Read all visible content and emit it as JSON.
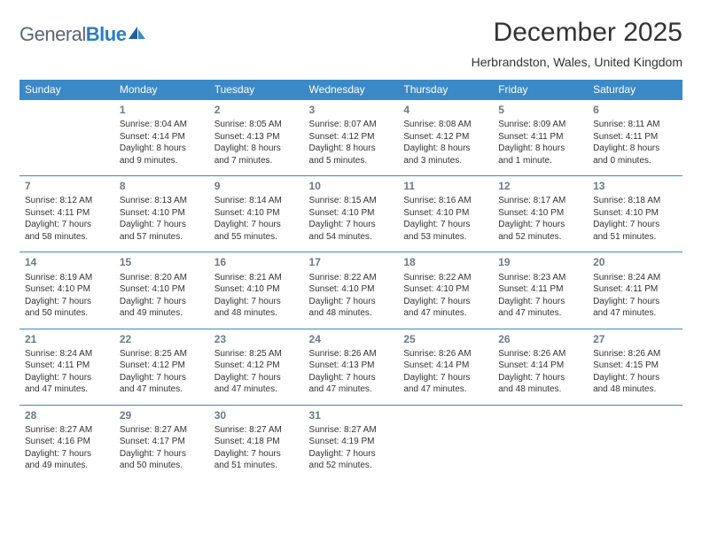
{
  "brand": {
    "part1": "General",
    "part2": "Blue"
  },
  "title": "December 2025",
  "location": "Herbrandston, Wales, United Kingdom",
  "colors": {
    "header_bg": "#3b89c7",
    "header_fg": "#ffffff",
    "border": "#3b89c7",
    "daynum": "#6b7a88",
    "text": "#333333",
    "brand_gray": "#5c6670",
    "brand_blue": "#2d7cc0",
    "page_bg": "#ffffff"
  },
  "typography": {
    "title_fontsize": 30,
    "location_fontsize": 14,
    "th_fontsize": 12,
    "daynum_fontsize": 12,
    "cell_fontsize": 10
  },
  "day_headers": [
    "Sunday",
    "Monday",
    "Tuesday",
    "Wednesday",
    "Thursday",
    "Friday",
    "Saturday"
  ],
  "weeks": [
    [
      null,
      {
        "n": "1",
        "sr": "Sunrise: 8:04 AM",
        "ss": "Sunset: 4:14 PM",
        "d1": "Daylight: 8 hours",
        "d2": "and 9 minutes."
      },
      {
        "n": "2",
        "sr": "Sunrise: 8:05 AM",
        "ss": "Sunset: 4:13 PM",
        "d1": "Daylight: 8 hours",
        "d2": "and 7 minutes."
      },
      {
        "n": "3",
        "sr": "Sunrise: 8:07 AM",
        "ss": "Sunset: 4:12 PM",
        "d1": "Daylight: 8 hours",
        "d2": "and 5 minutes."
      },
      {
        "n": "4",
        "sr": "Sunrise: 8:08 AM",
        "ss": "Sunset: 4:12 PM",
        "d1": "Daylight: 8 hours",
        "d2": "and 3 minutes."
      },
      {
        "n": "5",
        "sr": "Sunrise: 8:09 AM",
        "ss": "Sunset: 4:11 PM",
        "d1": "Daylight: 8 hours",
        "d2": "and 1 minute."
      },
      {
        "n": "6",
        "sr": "Sunrise: 8:11 AM",
        "ss": "Sunset: 4:11 PM",
        "d1": "Daylight: 8 hours",
        "d2": "and 0 minutes."
      }
    ],
    [
      {
        "n": "7",
        "sr": "Sunrise: 8:12 AM",
        "ss": "Sunset: 4:11 PM",
        "d1": "Daylight: 7 hours",
        "d2": "and 58 minutes."
      },
      {
        "n": "8",
        "sr": "Sunrise: 8:13 AM",
        "ss": "Sunset: 4:10 PM",
        "d1": "Daylight: 7 hours",
        "d2": "and 57 minutes."
      },
      {
        "n": "9",
        "sr": "Sunrise: 8:14 AM",
        "ss": "Sunset: 4:10 PM",
        "d1": "Daylight: 7 hours",
        "d2": "and 55 minutes."
      },
      {
        "n": "10",
        "sr": "Sunrise: 8:15 AM",
        "ss": "Sunset: 4:10 PM",
        "d1": "Daylight: 7 hours",
        "d2": "and 54 minutes."
      },
      {
        "n": "11",
        "sr": "Sunrise: 8:16 AM",
        "ss": "Sunset: 4:10 PM",
        "d1": "Daylight: 7 hours",
        "d2": "and 53 minutes."
      },
      {
        "n": "12",
        "sr": "Sunrise: 8:17 AM",
        "ss": "Sunset: 4:10 PM",
        "d1": "Daylight: 7 hours",
        "d2": "and 52 minutes."
      },
      {
        "n": "13",
        "sr": "Sunrise: 8:18 AM",
        "ss": "Sunset: 4:10 PM",
        "d1": "Daylight: 7 hours",
        "d2": "and 51 minutes."
      }
    ],
    [
      {
        "n": "14",
        "sr": "Sunrise: 8:19 AM",
        "ss": "Sunset: 4:10 PM",
        "d1": "Daylight: 7 hours",
        "d2": "and 50 minutes."
      },
      {
        "n": "15",
        "sr": "Sunrise: 8:20 AM",
        "ss": "Sunset: 4:10 PM",
        "d1": "Daylight: 7 hours",
        "d2": "and 49 minutes."
      },
      {
        "n": "16",
        "sr": "Sunrise: 8:21 AM",
        "ss": "Sunset: 4:10 PM",
        "d1": "Daylight: 7 hours",
        "d2": "and 48 minutes."
      },
      {
        "n": "17",
        "sr": "Sunrise: 8:22 AM",
        "ss": "Sunset: 4:10 PM",
        "d1": "Daylight: 7 hours",
        "d2": "and 48 minutes."
      },
      {
        "n": "18",
        "sr": "Sunrise: 8:22 AM",
        "ss": "Sunset: 4:10 PM",
        "d1": "Daylight: 7 hours",
        "d2": "and 47 minutes."
      },
      {
        "n": "19",
        "sr": "Sunrise: 8:23 AM",
        "ss": "Sunset: 4:11 PM",
        "d1": "Daylight: 7 hours",
        "d2": "and 47 minutes."
      },
      {
        "n": "20",
        "sr": "Sunrise: 8:24 AM",
        "ss": "Sunset: 4:11 PM",
        "d1": "Daylight: 7 hours",
        "d2": "and 47 minutes."
      }
    ],
    [
      {
        "n": "21",
        "sr": "Sunrise: 8:24 AM",
        "ss": "Sunset: 4:11 PM",
        "d1": "Daylight: 7 hours",
        "d2": "and 47 minutes."
      },
      {
        "n": "22",
        "sr": "Sunrise: 8:25 AM",
        "ss": "Sunset: 4:12 PM",
        "d1": "Daylight: 7 hours",
        "d2": "and 47 minutes."
      },
      {
        "n": "23",
        "sr": "Sunrise: 8:25 AM",
        "ss": "Sunset: 4:12 PM",
        "d1": "Daylight: 7 hours",
        "d2": "and 47 minutes."
      },
      {
        "n": "24",
        "sr": "Sunrise: 8:26 AM",
        "ss": "Sunset: 4:13 PM",
        "d1": "Daylight: 7 hours",
        "d2": "and 47 minutes."
      },
      {
        "n": "25",
        "sr": "Sunrise: 8:26 AM",
        "ss": "Sunset: 4:14 PM",
        "d1": "Daylight: 7 hours",
        "d2": "and 47 minutes."
      },
      {
        "n": "26",
        "sr": "Sunrise: 8:26 AM",
        "ss": "Sunset: 4:14 PM",
        "d1": "Daylight: 7 hours",
        "d2": "and 48 minutes."
      },
      {
        "n": "27",
        "sr": "Sunrise: 8:26 AM",
        "ss": "Sunset: 4:15 PM",
        "d1": "Daylight: 7 hours",
        "d2": "and 48 minutes."
      }
    ],
    [
      {
        "n": "28",
        "sr": "Sunrise: 8:27 AM",
        "ss": "Sunset: 4:16 PM",
        "d1": "Daylight: 7 hours",
        "d2": "and 49 minutes."
      },
      {
        "n": "29",
        "sr": "Sunrise: 8:27 AM",
        "ss": "Sunset: 4:17 PM",
        "d1": "Daylight: 7 hours",
        "d2": "and 50 minutes."
      },
      {
        "n": "30",
        "sr": "Sunrise: 8:27 AM",
        "ss": "Sunset: 4:18 PM",
        "d1": "Daylight: 7 hours",
        "d2": "and 51 minutes."
      },
      {
        "n": "31",
        "sr": "Sunrise: 8:27 AM",
        "ss": "Sunset: 4:19 PM",
        "d1": "Daylight: 7 hours",
        "d2": "and 52 minutes."
      },
      null,
      null,
      null
    ]
  ]
}
